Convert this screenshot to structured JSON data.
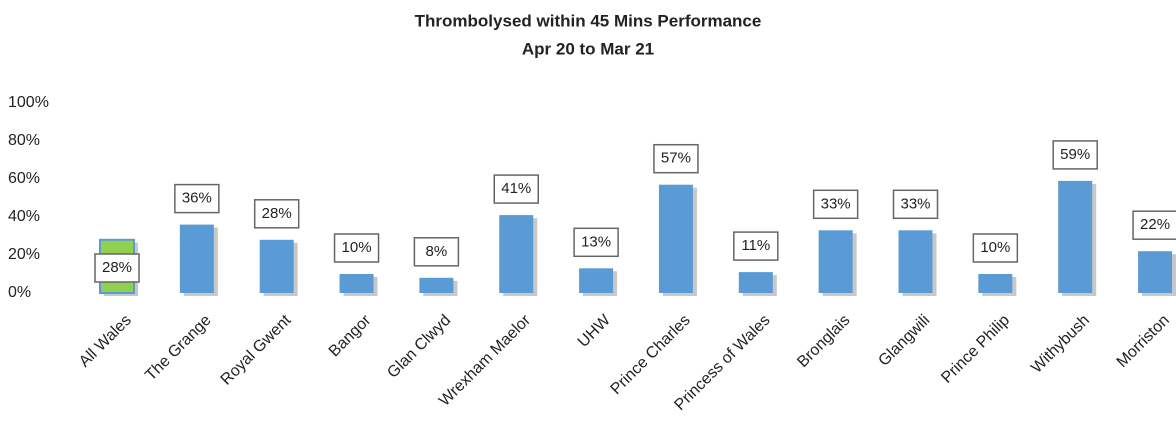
{
  "chart_data": {
    "type": "bar",
    "title": "Thrombolysed within 45 Mins Performance",
    "subtitle": "Apr 20 to Mar 21",
    "categories": [
      "All Wales",
      "The Grange",
      "Royal Gwent",
      "Bangor",
      "Glan Clwyd",
      "Wrexham Maelor",
      "UHW",
      "Prince Charles",
      "Princess of Wales",
      "Bronglais",
      "Glangwili",
      "Prince Philip",
      "Withybush",
      "Morriston"
    ],
    "values": [
      28,
      36,
      28,
      10,
      8,
      41,
      13,
      57,
      11,
      33,
      33,
      10,
      59,
      22
    ],
    "value_labels": [
      "28%",
      "36%",
      "28%",
      "10%",
      "8%",
      "41%",
      "13%",
      "57%",
      "11%",
      "33%",
      "33%",
      "10%",
      "59%",
      "22%"
    ],
    "colors": [
      "#92d050",
      "#5b9bd5",
      "#5b9bd5",
      "#5b9bd5",
      "#5b9bd5",
      "#5b9bd5",
      "#5b9bd5",
      "#5b9bd5",
      "#5b9bd5",
      "#5b9bd5",
      "#5b9bd5",
      "#5b9bd5",
      "#5b9bd5",
      "#5b9bd5"
    ],
    "ylim": [
      0,
      100
    ],
    "yticks": [
      {
        "value": 0,
        "label": "0%"
      },
      {
        "value": 20,
        "label": "20%"
      },
      {
        "value": 40,
        "label": "40%"
      },
      {
        "value": 60,
        "label": "60%"
      },
      {
        "value": 80,
        "label": "80%"
      },
      {
        "value": 100,
        "label": "100%"
      }
    ],
    "grid": false
  }
}
